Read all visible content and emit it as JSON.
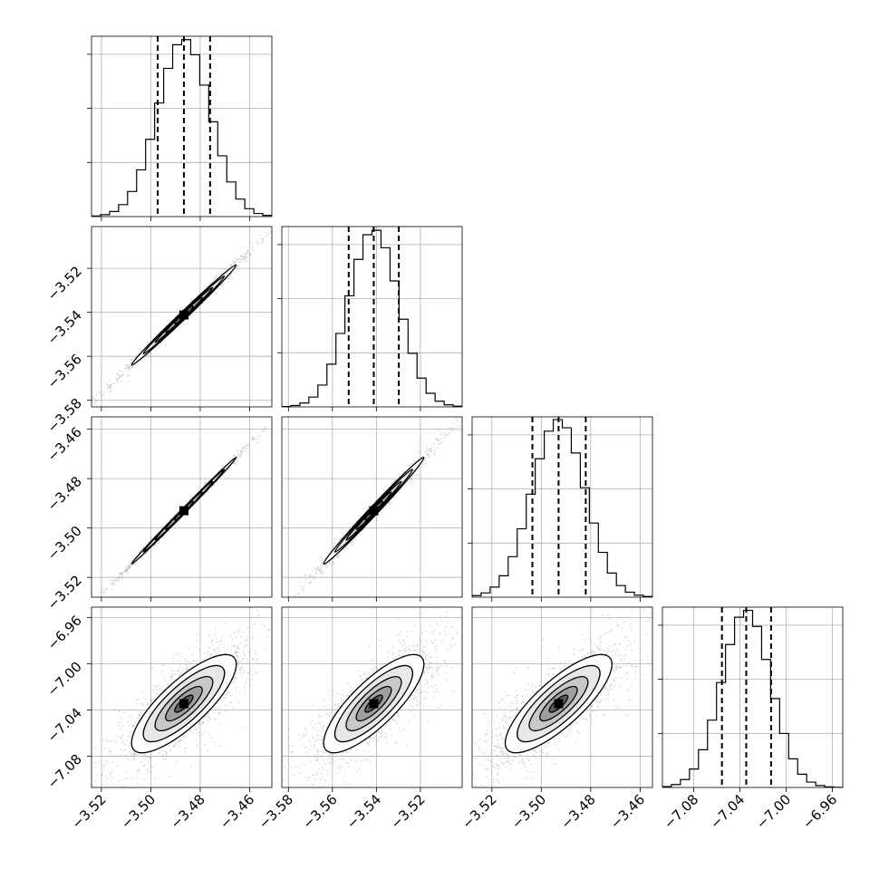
{
  "colors": {
    "line": "#000000",
    "grid": "#b0b0b0",
    "scatter": "#9a9a9a"
  },
  "chart_data": {
    "type": "corner",
    "grid": true,
    "n_params": 4,
    "parameters": [
      {
        "index": 0,
        "median": -3.4866,
        "quantiles": [
          -3.4972,
          -3.4866,
          -3.476
        ],
        "range": [
          -3.524,
          -3.451
        ],
        "ticks": [
          -3.52,
          -3.5,
          -3.48,
          -3.46
        ],
        "tick_labels": [
          "−3.52",
          "−3.50",
          "−3.48",
          "−3.46"
        ]
      },
      {
        "index": 1,
        "median": -3.5412,
        "quantiles": [
          -3.5526,
          -3.5412,
          -3.5298
        ],
        "range": [
          -3.583,
          -3.501
        ],
        "ticks": [
          -3.58,
          -3.56,
          -3.54,
          -3.52
        ],
        "tick_labels": [
          "−3.58",
          "−3.56",
          "−3.54",
          "−3.52"
        ]
      },
      {
        "index": 2,
        "median": -3.493,
        "quantiles": [
          -3.5036,
          -3.493,
          -3.482
        ],
        "range": [
          -3.528,
          -3.455
        ],
        "ticks": [
          -3.52,
          -3.5,
          -3.48,
          -3.46
        ],
        "tick_labels": [
          "−3.52",
          "−3.50",
          "−3.48",
          "−3.46"
        ]
      },
      {
        "index": 3,
        "median": -7.0345,
        "quantiles": [
          -7.0555,
          -7.0345,
          -7.013
        ],
        "range": [
          -7.107,
          -6.951
        ],
        "ticks": [
          -7.08,
          -7.04,
          -7.0,
          -6.96
        ],
        "tick_labels": [
          "−7.08",
          "−7.04",
          "−7.00",
          "−6.96"
        ]
      }
    ],
    "correlations": [
      [
        1.0,
        0.995,
        0.998,
        0.8
      ],
      [
        0.995,
        1.0,
        0.993,
        0.8
      ],
      [
        0.998,
        0.993,
        1.0,
        0.8
      ],
      [
        0.8,
        0.8,
        0.8,
        1.0
      ]
    ]
  }
}
